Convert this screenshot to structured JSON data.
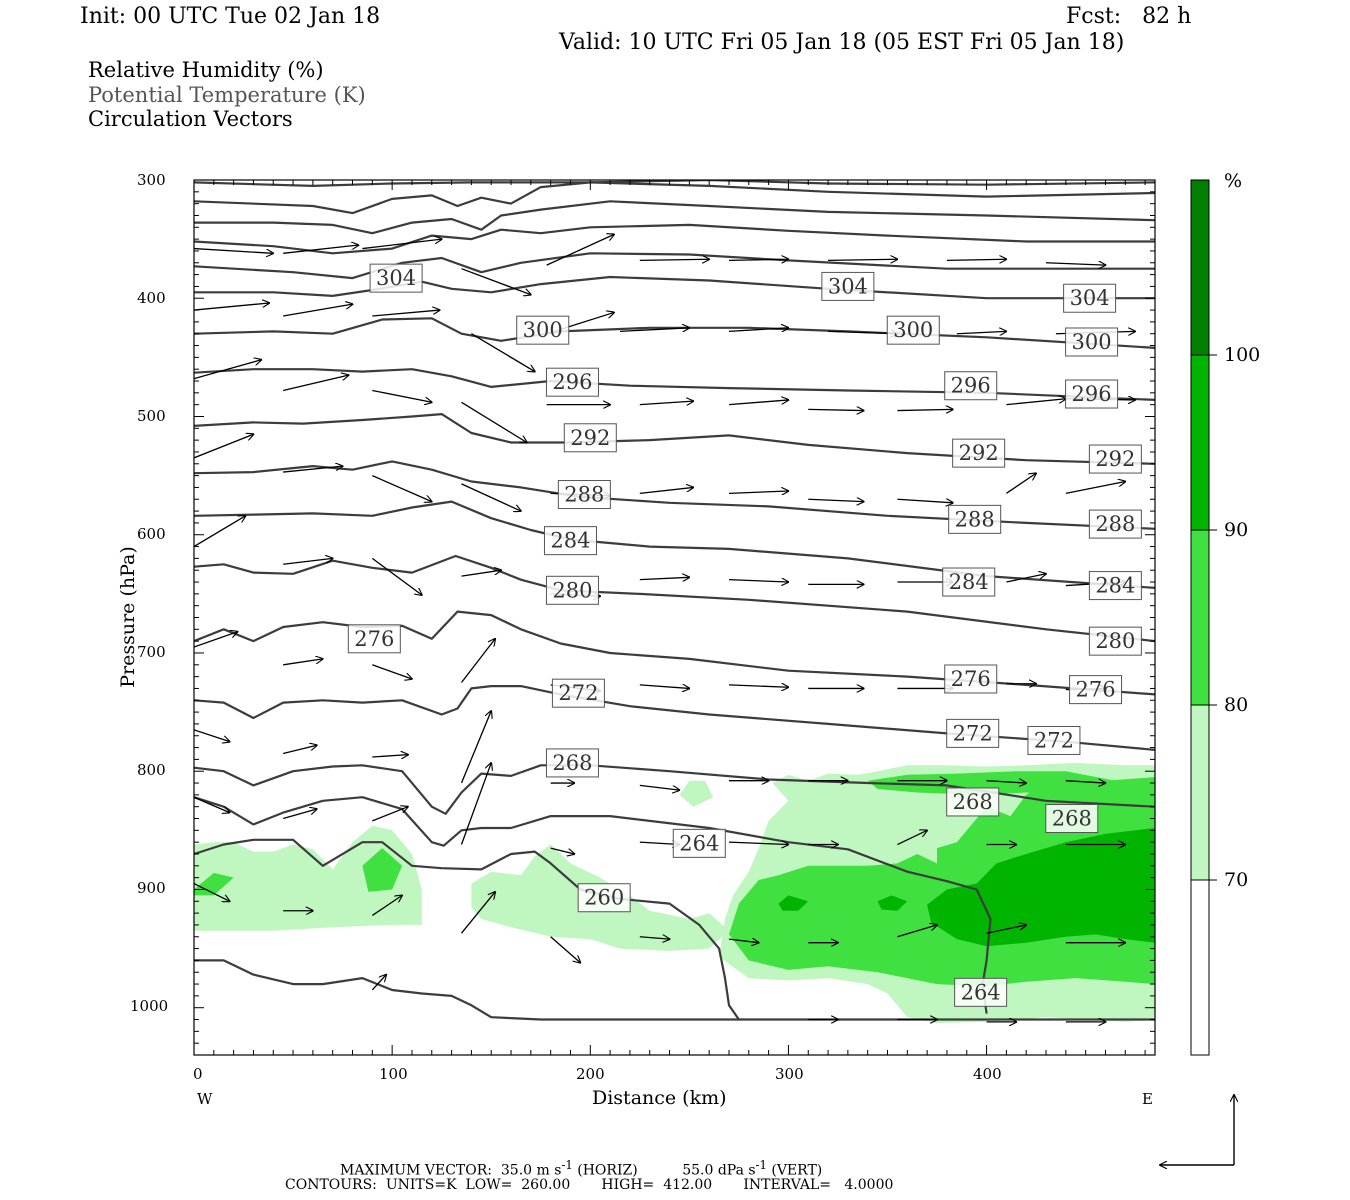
{
  "header": {
    "init": "Init: 00 UTC Tue 02 Jan 18",
    "fcst": "Fcst:   82 h",
    "valid": "Valid: 10 UTC Fri 05 Jan 18 (05 EST Fri 05 Jan 18)"
  },
  "legend": {
    "rh": "Relative Humidity (%)",
    "theta": "Potential Temperature (K)",
    "vectors": "Circulation Vectors"
  },
  "colors": {
    "rh_70": "#c0f7c0",
    "rh_80": "#3fe03f",
    "rh_90": "#00b400",
    "rh_100": "#007f00",
    "contour": "#3c3c3c",
    "vector": "#000000"
  },
  "chart_data": {
    "type": "cross-section",
    "xlabel": "Distance (km)",
    "ylabel": "Pressure (hPa)",
    "xlim": [
      0,
      485
    ],
    "ylim": [
      1040,
      300
    ],
    "x_ticks": [
      "0",
      "100",
      "200",
      "300",
      "400"
    ],
    "y_ticks": [
      "300",
      "400",
      "500",
      "600",
      "700",
      "800",
      "900",
      "1000"
    ],
    "west_label": "W",
    "east_label": "E",
    "colorbar": {
      "unit": "%",
      "levels": [
        "70",
        "80",
        "90",
        "100"
      ]
    },
    "theta_labels": [
      {
        "value": "304",
        "x": 102,
        "p": 383
      },
      {
        "value": "304",
        "x": 330,
        "p": 390
      },
      {
        "value": "304",
        "x": 452,
        "p": 400
      },
      {
        "value": "300",
        "x": 176,
        "p": 427
      },
      {
        "value": "300",
        "x": 363,
        "p": 427
      },
      {
        "value": "300",
        "x": 453,
        "p": 437
      },
      {
        "value": "296",
        "x": 191,
        "p": 471
      },
      {
        "value": "296",
        "x": 392,
        "p": 474
      },
      {
        "value": "296",
        "x": 453,
        "p": 481
      },
      {
        "value": "292",
        "x": 200,
        "p": 518
      },
      {
        "value": "292",
        "x": 396,
        "p": 531
      },
      {
        "value": "292",
        "x": 465,
        "p": 536
      },
      {
        "value": "288",
        "x": 197,
        "p": 566
      },
      {
        "value": "288",
        "x": 394,
        "p": 587
      },
      {
        "value": "288",
        "x": 465,
        "p": 591
      },
      {
        "value": "284",
        "x": 190,
        "p": 605
      },
      {
        "value": "284",
        "x": 391,
        "p": 640
      },
      {
        "value": "284",
        "x": 465,
        "p": 643
      },
      {
        "value": "280",
        "x": 191,
        "p": 647
      },
      {
        "value": "280",
        "x": 465,
        "p": 690
      },
      {
        "value": "276",
        "x": 91,
        "p": 688
      },
      {
        "value": "276",
        "x": 392,
        "p": 722
      },
      {
        "value": "276",
        "x": 455,
        "p": 731
      },
      {
        "value": "272",
        "x": 194,
        "p": 734
      },
      {
        "value": "272",
        "x": 393,
        "p": 768
      },
      {
        "value": "272",
        "x": 434,
        "p": 774
      },
      {
        "value": "268",
        "x": 191,
        "p": 793
      },
      {
        "value": "268",
        "x": 393,
        "p": 826
      },
      {
        "value": "268",
        "x": 443,
        "p": 840
      },
      {
        "value": "264",
        "x": 255,
        "p": 861
      },
      {
        "value": "264",
        "x": 397,
        "p": 987
      },
      {
        "value": "260",
        "x": 207,
        "p": 907
      }
    ],
    "contour_info": {
      "units": "K",
      "low": "260.00",
      "high": "412.00",
      "interval": "4.0000"
    },
    "max_vector": {
      "horiz": "35.0",
      "horiz_units": "m s",
      "vert": "55.0",
      "vert_units": "dPa s"
    }
  },
  "footer": {
    "max_vector_label": "MAXIMUM VECTOR:",
    "horiz_tag": "(HORIZ)",
    "vert_tag": "(VERT)",
    "exponent": "-1",
    "contours_label": "CONTOURS:",
    "units_label": "UNITS=",
    "low_label": "LOW=",
    "high_label": "HIGH=",
    "interval_label": "INTERVAL="
  }
}
